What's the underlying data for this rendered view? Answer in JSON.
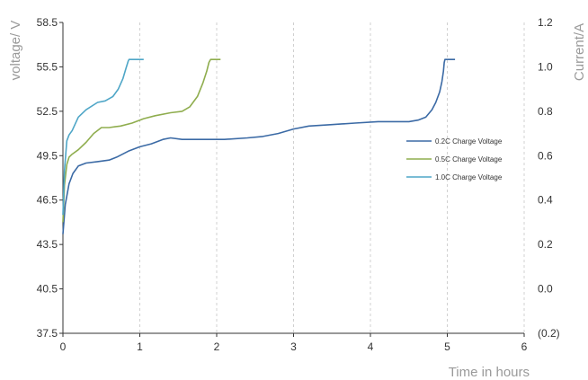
{
  "chart_data": {
    "type": "line",
    "xlabel": "Time in hours",
    "ylabel": "voltage/ V",
    "y2label": "Current/A",
    "xlim": [
      0,
      6
    ],
    "ylim": [
      37.5,
      58.5
    ],
    "y2lim": [
      -0.2,
      1.2
    ],
    "xticks": [
      "0",
      "1",
      "2",
      "3",
      "4",
      "5",
      "6"
    ],
    "yticks": [
      "37.5",
      "40.5",
      "43.5",
      "46.5",
      "49.5",
      "52.5",
      "55.5",
      "58.5"
    ],
    "y2ticks": [
      {
        "value": -0.2,
        "label": "(0.2)",
        "color": "#d2691e"
      },
      {
        "value": 0.0,
        "label": "0.0"
      },
      {
        "value": 0.2,
        "label": "0.2"
      },
      {
        "value": 0.4,
        "label": "0.4"
      },
      {
        "value": 0.6,
        "label": "0.6"
      },
      {
        "value": 0.8,
        "label": "0.8"
      },
      {
        "value": 1.0,
        "label": "1.0"
      },
      {
        "value": 1.2,
        "label": "1.2"
      }
    ],
    "grid": {
      "vertical": "dashed",
      "horizontal": "none"
    },
    "legend_position": "right-middle",
    "series": [
      {
        "name": "0.2C Charge Voltage",
        "color": "#3b6aa5",
        "x": [
          0.0,
          0.03,
          0.08,
          0.13,
          0.2,
          0.3,
          0.45,
          0.6,
          0.7,
          0.85,
          1.0,
          1.15,
          1.3,
          1.4,
          1.55,
          1.8,
          2.1,
          2.4,
          2.6,
          2.8,
          3.0,
          3.2,
          3.5,
          3.8,
          4.1,
          4.3,
          4.5,
          4.62,
          4.72,
          4.8,
          4.85,
          4.9,
          4.93,
          4.95,
          4.96,
          4.97,
          5.0,
          5.1
        ],
        "y": [
          44.2,
          46.2,
          47.6,
          48.3,
          48.8,
          49.0,
          49.1,
          49.2,
          49.4,
          49.8,
          50.1,
          50.3,
          50.6,
          50.7,
          50.6,
          50.6,
          50.6,
          50.7,
          50.8,
          51.0,
          51.3,
          51.5,
          51.6,
          51.7,
          51.8,
          51.8,
          51.8,
          51.9,
          52.1,
          52.6,
          53.1,
          53.8,
          54.5,
          55.2,
          55.8,
          56.0,
          56.0,
          56.0
        ]
      },
      {
        "name": "0.5C Charge Voltage",
        "color": "#8fad4e",
        "x": [
          0.0,
          0.02,
          0.05,
          0.08,
          0.12,
          0.2,
          0.3,
          0.4,
          0.5,
          0.6,
          0.75,
          0.9,
          1.05,
          1.2,
          1.4,
          1.55,
          1.65,
          1.75,
          1.82,
          1.87,
          1.9,
          1.92,
          1.93,
          1.95,
          2.05
        ],
        "y": [
          45.0,
          47.5,
          48.9,
          49.4,
          49.6,
          49.9,
          50.4,
          51.0,
          51.4,
          51.4,
          51.5,
          51.7,
          52.0,
          52.2,
          52.4,
          52.5,
          52.8,
          53.5,
          54.4,
          55.2,
          55.8,
          56.0,
          56.0,
          56.0,
          56.0
        ]
      },
      {
        "name": "1.0C Charge Voltage",
        "color": "#4fa6c7",
        "x": [
          0.0,
          0.02,
          0.05,
          0.08,
          0.12,
          0.2,
          0.3,
          0.45,
          0.55,
          0.65,
          0.72,
          0.78,
          0.82,
          0.85,
          0.86,
          0.88,
          1.05
        ],
        "y": [
          45.5,
          48.5,
          50.5,
          50.9,
          51.2,
          52.1,
          52.6,
          53.1,
          53.2,
          53.5,
          54.0,
          54.7,
          55.4,
          55.9,
          56.0,
          56.0,
          56.0
        ]
      }
    ]
  }
}
